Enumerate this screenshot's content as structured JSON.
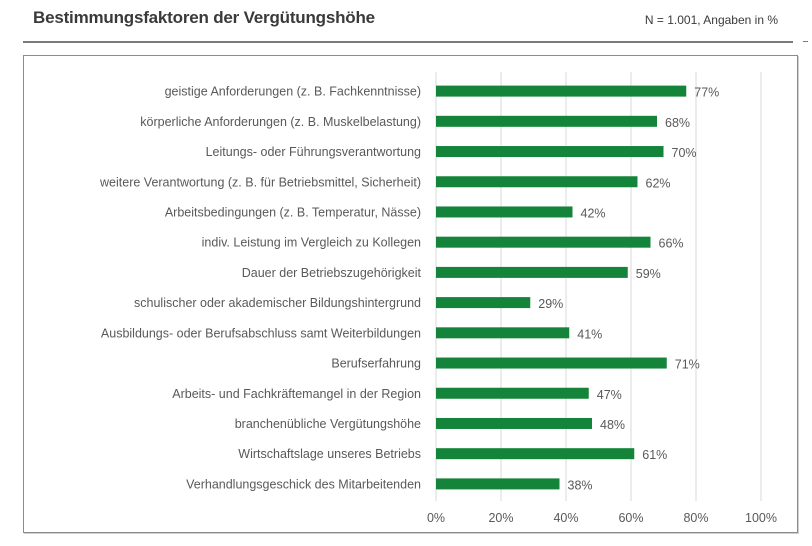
{
  "header": {
    "title": "Bestimmungsfaktoren der Vergütungshöhe",
    "note": "N = 1.001, Angaben in %"
  },
  "colors": {
    "bar": "#138439",
    "grid": "#d9d9d9",
    "text": "#595959"
  },
  "chart_data": {
    "type": "bar",
    "orientation": "horizontal",
    "title": "Bestimmungsfaktoren der Vergütungshöhe",
    "subtitle": "N = 1.001, Angaben in %",
    "xlabel": "",
    "ylabel": "",
    "xlim": [
      0,
      100
    ],
    "x_ticks": [
      0,
      20,
      40,
      60,
      80,
      100
    ],
    "x_tick_labels": [
      "0%",
      "20%",
      "40%",
      "60%",
      "80%",
      "100%"
    ],
    "grid": "vertical",
    "legend": "none",
    "categories": [
      "geistige Anforderungen (z. B. Fachkenntnisse)",
      "körperliche Anforderungen (z. B. Muskelbelastung)",
      "Leitungs- oder Führungsverantwortung",
      "weitere Verantwortung (z. B. für Betriebsmittel, Sicherheit)",
      "Arbeitsbedingungen (z. B. Temperatur, Nässe)",
      "indiv. Leistung im Vergleich zu Kollegen",
      "Dauer der Betriebszugehörigkeit",
      "schulischer oder akademischer Bildungshintergrund",
      "Ausbildungs- oder Berufsabschluss samt Weiterbildungen",
      "Berufserfahrung",
      "Arbeits- und Fachkräftemangel in der Region",
      "branchenübliche Vergütungshöhe",
      "Wirtschaftslage unseres Betriebs",
      "Verhandlungsgeschick des Mitarbeitenden"
    ],
    "values": [
      77,
      68,
      70,
      62,
      42,
      66,
      59,
      29,
      41,
      71,
      47,
      48,
      61,
      38
    ],
    "value_labels": [
      "77%",
      "68%",
      "70%",
      "62%",
      "42%",
      "66%",
      "59%",
      "29%",
      "41%",
      "71%",
      "47%",
      "48%",
      "61%",
      "38%"
    ]
  }
}
